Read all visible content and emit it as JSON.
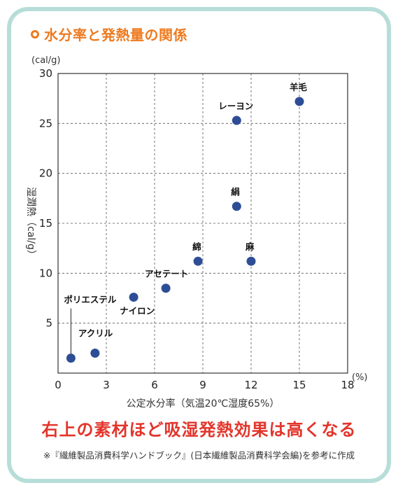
{
  "header": {
    "title": "水分率と発熱量の関係",
    "icon": "ring-icon"
  },
  "chart_data": {
    "type": "scatter",
    "title": "水分率と発熱量の関係",
    "xlabel": "公定水分率（気温20℃湿度65%）",
    "x_unit": "(%)",
    "ylabel": "湿潤熱（cal/g）",
    "y_unit": "(cal/g)",
    "xlim": [
      0,
      18
    ],
    "ylim": [
      0,
      30
    ],
    "x_ticks": [
      "0",
      "3",
      "6",
      "9",
      "12",
      "15",
      "18"
    ],
    "y_ticks": [
      "5",
      "10",
      "15",
      "20",
      "25",
      "30"
    ],
    "grid": true,
    "marker_color": "#2d4e96",
    "points": [
      {
        "label": "ポリエステル",
        "x": 0.8,
        "y": 1.5
      },
      {
        "label": "アクリル",
        "x": 2.3,
        "y": 2.0
      },
      {
        "label": "ナイロン",
        "x": 4.7,
        "y": 7.6
      },
      {
        "label": "アセテート",
        "x": 6.7,
        "y": 8.5
      },
      {
        "label": "綿",
        "x": 8.7,
        "y": 11.2
      },
      {
        "label": "麻",
        "x": 12.0,
        "y": 11.2
      },
      {
        "label": "絹",
        "x": 11.1,
        "y": 16.7
      },
      {
        "label": "レーヨン",
        "x": 11.1,
        "y": 25.3
      },
      {
        "label": "羊毛",
        "x": 15.0,
        "y": 27.2
      }
    ]
  },
  "conclusion": "右上の素材ほど吸湿発熱効果は高くなる",
  "source": "※『繊維製品消費科学ハンドブック』(日本繊維製品消費科学会編)を参考に作成",
  "colors": {
    "border": "#b7ddd8",
    "accent": "#ee7a1f",
    "conclusion": "#e2352b"
  }
}
